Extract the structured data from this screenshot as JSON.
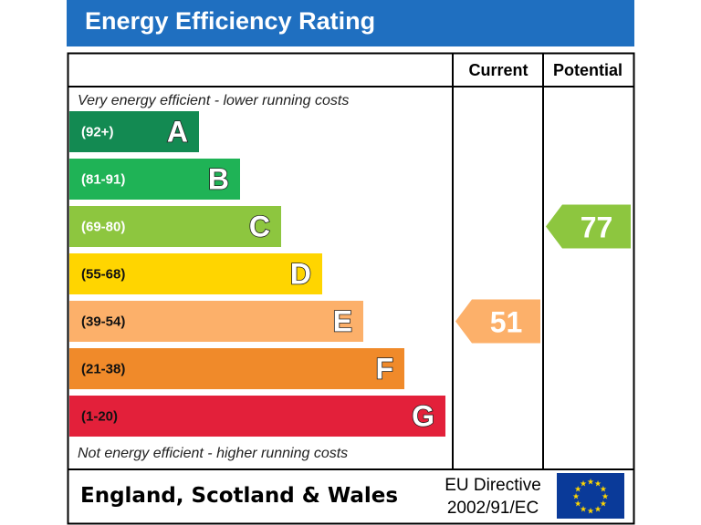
{
  "header": {
    "title": "Energy Efficiency Rating"
  },
  "chart_data": {
    "type": "bar",
    "title": "Energy Efficiency Rating",
    "column_headers": [
      "Current",
      "Potential"
    ],
    "top_note": "Very energy efficient - lower running costs",
    "bottom_note": "Not energy efficient - higher running costs",
    "bands": [
      {
        "letter": "A",
        "range": "(92+)",
        "color": "#138a52"
      },
      {
        "letter": "B",
        "range": "(81-91)",
        "color": "#1fb356"
      },
      {
        "letter": "C",
        "range": "(69-80)",
        "color": "#8dc63f"
      },
      {
        "letter": "D",
        "range": "(55-68)",
        "color": "#ffd500"
      },
      {
        "letter": "E",
        "range": "(39-54)",
        "color": "#fcb06a"
      },
      {
        "letter": "F",
        "range": "(21-38)",
        "color": "#f08a2a"
      },
      {
        "letter": "G",
        "range": "(1-20)",
        "color": "#e3203a"
      }
    ],
    "current": {
      "value": 51,
      "band": "E",
      "color": "#fcb06a"
    },
    "potential": {
      "value": 77,
      "band": "C",
      "color": "#8dc63f"
    }
  },
  "footer": {
    "region": "England, Scotland & Wales",
    "directive_line1": "EU Directive",
    "directive_line2": "2002/91/EC",
    "flag_color": "#0a3a99",
    "star_color": "#ffd700"
  }
}
